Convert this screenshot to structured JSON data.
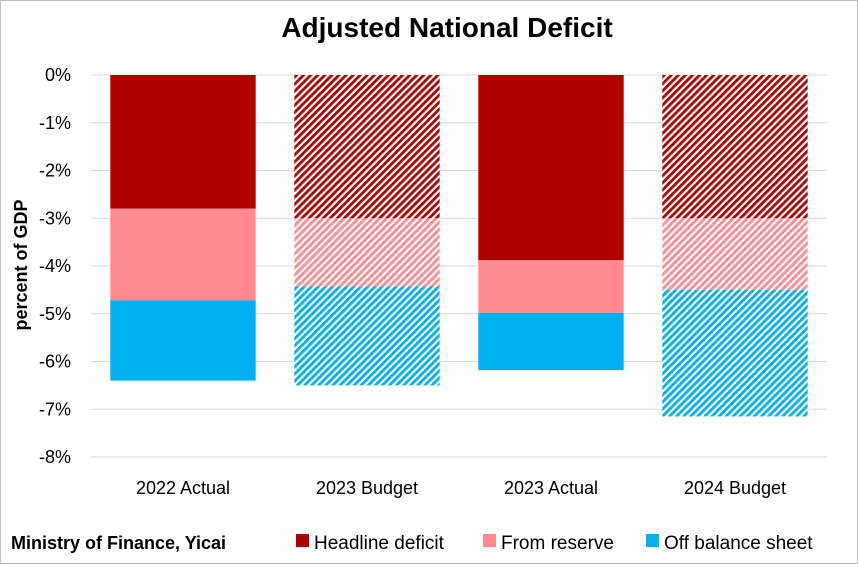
{
  "chart_data": {
    "type": "bar",
    "stacked": true,
    "title": "Adjusted National Deficit",
    "ylabel": "percent of GDP",
    "xlabel": "",
    "ylim": [
      -8,
      0
    ],
    "yticks": [
      "0%",
      "-1%",
      "-2%",
      "-3%",
      "-4%",
      "-5%",
      "-6%",
      "-7%",
      "-8%"
    ],
    "ytick_values": [
      0,
      -1,
      -2,
      -3,
      -4,
      -5,
      -6,
      -7,
      -8
    ],
    "categories": [
      "2022 Actual",
      "2023 Budget",
      "2023 Actual",
      "2024 Budget"
    ],
    "hatched_categories": [
      "2023 Budget",
      "2024 Budget"
    ],
    "series": [
      {
        "name": "Headline deficit",
        "color": "#b00000",
        "values": [
          -2.8,
          -3.0,
          -3.88,
          -3.0
        ]
      },
      {
        "name": "From reserve",
        "color": "#ff8a90",
        "values": [
          -1.92,
          -1.43,
          -1.1,
          -1.5
        ]
      },
      {
        "name": "Off balance sheet",
        "color": "#00b0f0",
        "values": [
          -1.68,
          -2.07,
          -1.2,
          -2.65
        ]
      }
    ],
    "grid": true,
    "legend_position": "bottom"
  },
  "source": "Ministry of Finance, Yicai"
}
